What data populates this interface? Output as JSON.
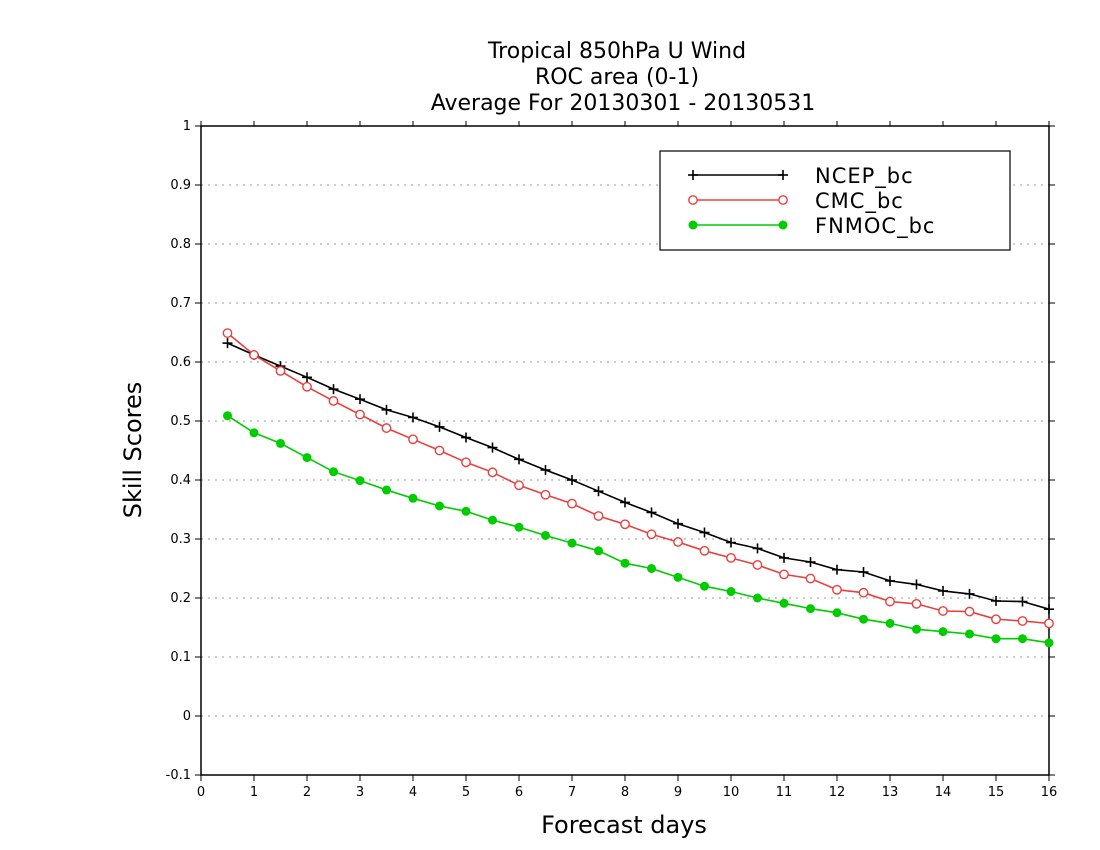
{
  "chart_data": {
    "type": "line",
    "title": [
      "Tropical 850hPa U Wind",
      "ROC area (0-1)",
      "Average For 20130301 - 20130531"
    ],
    "xlabel": "Forecast days",
    "ylabel": "Skill Scores",
    "xlim": [
      0,
      16
    ],
    "ylim": [
      -0.1,
      1
    ],
    "xticks": [
      0,
      1,
      2,
      3,
      4,
      5,
      6,
      7,
      8,
      9,
      10,
      11,
      12,
      13,
      14,
      15,
      16
    ],
    "xtick_labels": [
      "0",
      "1",
      "2",
      "3",
      "4",
      "5",
      "6",
      "7",
      "8",
      "9",
      "10",
      "11",
      "12",
      "13",
      "14",
      "15",
      "16"
    ],
    "yticks": [
      -0.1,
      0,
      0.1,
      0.2,
      0.3,
      0.4,
      0.5,
      0.6,
      0.7,
      0.8,
      0.9,
      1
    ],
    "ytick_labels": [
      "-0.1",
      "0",
      "0.1",
      "0.2",
      "0.3",
      "0.4",
      "0.5",
      "0.6",
      "0.7",
      "0.8",
      "0.9",
      "1"
    ],
    "grid": "dotted horizontal",
    "legend_position": "top-right",
    "x": [
      0.5,
      1,
      1.5,
      2,
      2.5,
      3,
      3.5,
      4,
      4.5,
      5,
      5.5,
      6,
      6.5,
      7,
      7.5,
      8,
      8.5,
      9,
      9.5,
      10,
      10.5,
      11,
      11.5,
      12,
      12.5,
      13,
      13.5,
      14,
      14.5,
      15,
      15.5,
      16
    ],
    "series": [
      {
        "name": "NCEP_bc",
        "color": "#000000",
        "marker": "plus",
        "values": [
          0.632,
          0.612,
          0.593,
          0.574,
          0.554,
          0.537,
          0.519,
          0.506,
          0.49,
          0.472,
          0.455,
          0.435,
          0.417,
          0.4,
          0.381,
          0.362,
          0.345,
          0.326,
          0.311,
          0.294,
          0.284,
          0.268,
          0.261,
          0.248,
          0.244,
          0.229,
          0.223,
          0.212,
          0.207,
          0.195,
          0.194,
          0.181
        ]
      },
      {
        "name": "CMC_bc",
        "color": "#e8403e",
        "marker": "open-circle",
        "values": [
          0.649,
          0.612,
          0.585,
          0.558,
          0.534,
          0.511,
          0.488,
          0.469,
          0.45,
          0.43,
          0.413,
          0.391,
          0.375,
          0.36,
          0.339,
          0.325,
          0.308,
          0.295,
          0.28,
          0.268,
          0.256,
          0.24,
          0.233,
          0.214,
          0.209,
          0.194,
          0.19,
          0.178,
          0.177,
          0.164,
          0.161,
          0.157
        ]
      },
      {
        "name": "FNMOC_bc",
        "color": "#00cc00",
        "marker": "filled-circle",
        "values": [
          0.509,
          0.48,
          0.462,
          0.438,
          0.414,
          0.399,
          0.383,
          0.369,
          0.356,
          0.347,
          0.332,
          0.32,
          0.306,
          0.293,
          0.28,
          0.259,
          0.25,
          0.235,
          0.22,
          0.211,
          0.2,
          0.191,
          0.182,
          0.175,
          0.164,
          0.157,
          0.147,
          0.143,
          0.139,
          0.131,
          0.131,
          0.124
        ]
      }
    ]
  }
}
